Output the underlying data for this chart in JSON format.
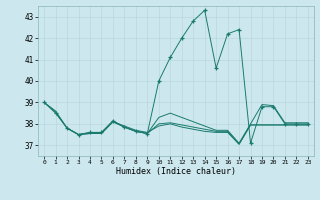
{
  "title": "",
  "xlabel": "Humidex (Indice chaleur)",
  "bg_color": "#cce8ee",
  "line_color": "#1a7a6e",
  "grid_color": "#b8d8de",
  "xlim": [
    -0.5,
    23.5
  ],
  "ylim": [
    36.5,
    43.5
  ],
  "xticks": [
    0,
    1,
    2,
    3,
    4,
    5,
    6,
    7,
    8,
    9,
    10,
    11,
    12,
    13,
    14,
    15,
    16,
    17,
    18,
    19,
    20,
    21,
    22,
    23
  ],
  "yticks": [
    37,
    38,
    39,
    40,
    41,
    42,
    43
  ],
  "lines": [
    {
      "x": [
        0,
        1,
        2,
        3,
        4,
        5,
        6,
        7,
        8,
        9,
        10,
        11,
        12,
        13,
        14,
        15,
        16,
        17,
        18,
        19,
        20,
        21,
        22,
        23
      ],
      "y": [
        39.0,
        38.6,
        37.8,
        37.5,
        37.55,
        37.55,
        38.1,
        37.85,
        37.65,
        37.55,
        38.0,
        38.05,
        37.95,
        37.85,
        37.75,
        37.65,
        37.65,
        37.05,
        37.95,
        37.95,
        37.95,
        37.95,
        37.95,
        37.95
      ],
      "marker": false
    },
    {
      "x": [
        0,
        1,
        2,
        3,
        4,
        5,
        6,
        7,
        8,
        9,
        10,
        11,
        12,
        13,
        14,
        15,
        16,
        17,
        18,
        19,
        20,
        21,
        22,
        23
      ],
      "y": [
        39.0,
        38.5,
        37.8,
        37.5,
        37.6,
        37.6,
        38.15,
        37.85,
        37.65,
        37.55,
        40.0,
        41.1,
        42.0,
        42.8,
        43.3,
        40.6,
        42.2,
        42.4,
        37.1,
        38.8,
        38.8,
        38.0,
        38.0,
        38.0
      ],
      "marker": true
    },
    {
      "x": [
        0,
        1,
        2,
        3,
        4,
        5,
        6,
        7,
        8,
        9,
        10,
        11,
        12,
        13,
        14,
        15,
        16,
        17,
        18,
        19,
        20,
        21,
        22,
        23
      ],
      "y": [
        39.0,
        38.55,
        37.8,
        37.5,
        37.55,
        37.55,
        38.1,
        37.85,
        37.65,
        37.55,
        38.3,
        38.5,
        38.3,
        38.1,
        37.9,
        37.7,
        37.7,
        37.1,
        38.0,
        38.9,
        38.85,
        38.05,
        38.05,
        38.05
      ],
      "marker": false
    },
    {
      "x": [
        2,
        3,
        4,
        5,
        6,
        7,
        8,
        9,
        10,
        11,
        12,
        13,
        14,
        15,
        16,
        17,
        18,
        19,
        20,
        21,
        22,
        23
      ],
      "y": [
        37.8,
        37.5,
        37.6,
        37.6,
        38.1,
        37.9,
        37.7,
        37.6,
        37.9,
        38.0,
        37.85,
        37.75,
        37.65,
        37.6,
        37.6,
        37.05,
        37.95,
        37.95,
        37.95,
        37.95,
        37.95,
        37.95
      ],
      "marker": false
    }
  ]
}
